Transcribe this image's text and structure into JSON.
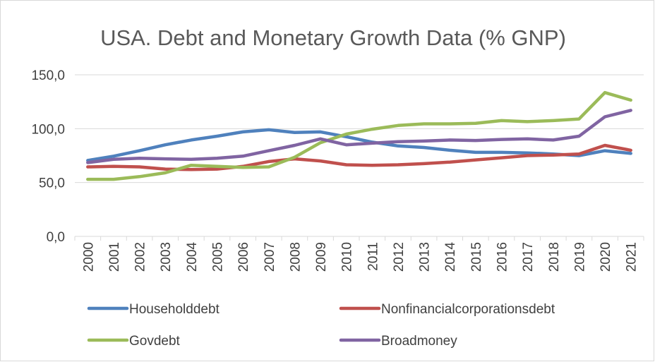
{
  "chart_data": {
    "type": "line",
    "title": "USA. Debt and Monetary Growth Data (% GNP)",
    "xlabel": "",
    "ylabel": "",
    "ylim": [
      0,
      150
    ],
    "yticks": [
      "0,0",
      "50,0",
      "100,0",
      "150,0"
    ],
    "ytick_values": [
      0,
      50,
      100,
      150
    ],
    "grid": true,
    "legend_position": "bottom",
    "categories": [
      "2000",
      "2001",
      "2002",
      "2003",
      "2004",
      "2005",
      "2006",
      "2007",
      "2008",
      "2009",
      "2010",
      "2011",
      "2012",
      "2013",
      "2014",
      "2015",
      "2016",
      "2017",
      "2018",
      "2019",
      "2020",
      "2021"
    ],
    "series": [
      {
        "name": "Householddebt",
        "color": "#4f81bd",
        "values": [
          70.5,
          74.5,
          79.5,
          85,
          89.5,
          93,
          97,
          99,
          96.5,
          97,
          92.5,
          87.5,
          84,
          82.5,
          80,
          78,
          78,
          77.5,
          76.5,
          75,
          79.5,
          77
        ]
      },
      {
        "name": "Nonfinancialcorporationsdebt",
        "color": "#c0504d",
        "values": [
          64.5,
          65,
          64.5,
          62.5,
          62,
          62.5,
          65,
          69.5,
          72,
          70,
          66.5,
          66,
          66.5,
          67.5,
          69,
          71,
          73,
          75,
          75.5,
          76.5,
          84.5,
          80
        ]
      },
      {
        "name": "Govdebt",
        "color": "#9bbb59",
        "values": [
          53,
          53,
          55.5,
          59,
          66,
          65,
          64,
          64.5,
          73.5,
          87,
          95,
          99.5,
          103,
          104.5,
          104.5,
          105,
          107.5,
          106.5,
          107.5,
          109,
          133.5,
          126.5
        ]
      },
      {
        "name": "Broadmoney",
        "color": "#8064a2",
        "values": [
          68.5,
          71.5,
          72.5,
          72,
          71.5,
          72.5,
          74.5,
          79.5,
          84.5,
          90.5,
          85,
          86.5,
          88,
          88.5,
          89.5,
          89,
          90,
          90.5,
          89.5,
          93,
          111,
          117
        ]
      }
    ]
  }
}
